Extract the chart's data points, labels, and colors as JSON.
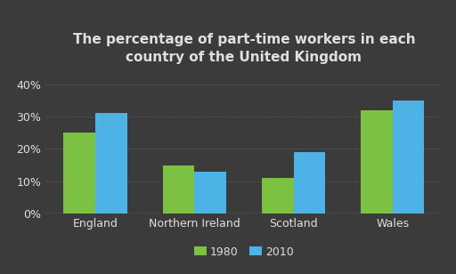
{
  "title": "The percentage of part-time workers in each\ncountry of the United Kingdom",
  "categories": [
    "England",
    "Northern Ireland",
    "Scotland",
    "Wales"
  ],
  "values_1980": [
    25,
    15,
    11,
    32
  ],
  "values_2010": [
    31,
    13,
    19,
    35
  ],
  "color_1980": "#7dc142",
  "color_2010": "#4db3e6",
  "background_color": "#3b3b3b",
  "text_color": "#e0e0e0",
  "yticks": [
    0,
    10,
    20,
    30,
    40
  ],
  "ytick_labels": [
    "0%",
    "10%",
    "20%",
    "30%",
    "40%"
  ],
  "legend_labels": [
    "1980",
    "2010"
  ],
  "title_fontsize": 11,
  "tick_fontsize": 9,
  "legend_fontsize": 9,
  "bar_width": 0.32,
  "grid_color": "#606060"
}
